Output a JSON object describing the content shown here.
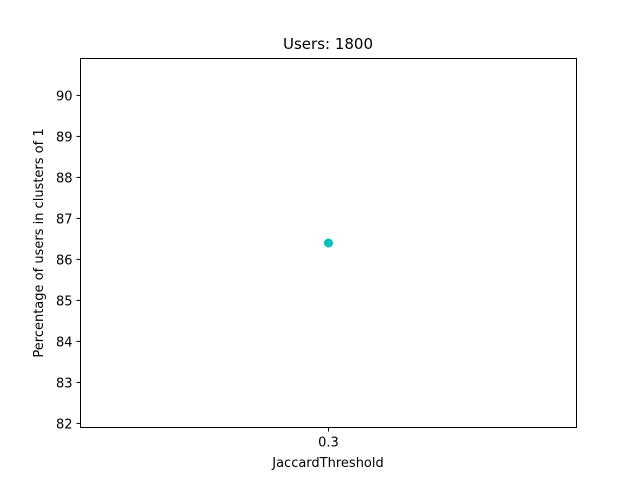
{
  "chart_data": {
    "type": "scatter",
    "title": "Users: 1800",
    "xlabel": "JaccardThreshold",
    "ylabel": "Percentage of users in clusters of 1",
    "x_ticks": [
      "0.3"
    ],
    "y_ticks": [
      "82",
      "83",
      "84",
      "85",
      "86",
      "87",
      "88",
      "89",
      "90"
    ],
    "ylim": [
      81.9,
      90.9
    ],
    "grid": false,
    "series": [
      {
        "x": [
          "0.3"
        ],
        "y": [
          86.4
        ],
        "color": "#00bfbf",
        "marker": "circle"
      }
    ]
  }
}
